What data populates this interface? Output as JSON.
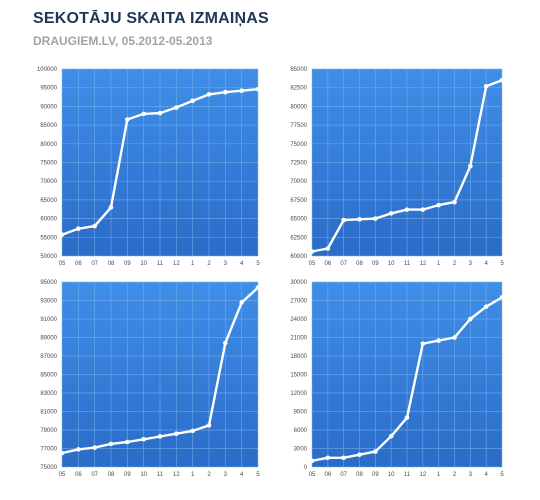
{
  "header": {
    "title": "SEKOTĀJU SKAITA IZMAIŅAS",
    "subtitle": "DRAUGIEM.LV, 05.2012-05.2013"
  },
  "colors": {
    "plot_top": "#3f8ee8",
    "plot_bottom": "#2a6cc8",
    "grid": "#7fb2ee",
    "line": "#ffffff",
    "title": "#1f3557",
    "subtitle": "#a3a3a3"
  },
  "chart_data": [
    {
      "type": "line",
      "title": "",
      "x": [
        "05",
        "06",
        "07",
        "08",
        "09",
        "10",
        "11",
        "12",
        "1",
        "2",
        "3",
        "4",
        "5"
      ],
      "series": [
        {
          "values": [
            55700,
            57300,
            58000,
            63000,
            86500,
            88000,
            88200,
            89700,
            91500,
            93200,
            93800,
            94200,
            94600
          ]
        }
      ],
      "ylim": [
        50000,
        100000
      ],
      "yticks": [
        "50000",
        "55000",
        "60000",
        "65000",
        "70000",
        "75000",
        "80000",
        "85000",
        "90000",
        "95000",
        "100000"
      ],
      "grid": true
    },
    {
      "type": "line",
      "title": "",
      "x": [
        "05",
        "06",
        "07",
        "08",
        "09",
        "10",
        "11",
        "12",
        "1",
        "2",
        "3",
        "4",
        "5"
      ],
      "series": [
        {
          "values": [
            60600,
            61000,
            64800,
            64900,
            65000,
            65700,
            66200,
            66200,
            66800,
            67200,
            72000,
            82700,
            83500
          ]
        }
      ],
      "ylim": [
        60000,
        85000
      ],
      "yticks": [
        "60000",
        "62500",
        "65000",
        "67500",
        "70000",
        "72500",
        "75000",
        "77500",
        "80000",
        "82500",
        "85000"
      ],
      "grid": true
    },
    {
      "type": "line",
      "title": "",
      "x": [
        "05",
        "06",
        "07",
        "08",
        "09",
        "10",
        "11",
        "12",
        "1",
        "2",
        "3",
        "4",
        "5"
      ],
      "series": [
        {
          "values": [
            76500,
            76900,
            77100,
            77500,
            77700,
            78000,
            78300,
            78600,
            78900,
            79500,
            88400,
            92800,
            94400
          ]
        }
      ],
      "ylim": [
        75000,
        95000
      ],
      "yticks": [
        "75000",
        "77000",
        "79000",
        "81000",
        "83000",
        "85000",
        "87000",
        "89000",
        "91000",
        "93000",
        "95000"
      ],
      "grid": true
    },
    {
      "type": "line",
      "title": "",
      "x": [
        "05",
        "06",
        "07",
        "08",
        "09",
        "10",
        "11",
        "12",
        "1",
        "2",
        "3",
        "4",
        "5"
      ],
      "series": [
        {
          "values": [
            1000,
            1500,
            1500,
            2000,
            2500,
            5000,
            8000,
            20000,
            20500,
            21000,
            24000,
            26000,
            27500
          ]
        }
      ],
      "ylim": [
        0,
        30000
      ],
      "yticks": [
        "0",
        "3000",
        "6000",
        "9000",
        "12000",
        "15000",
        "18000",
        "21000",
        "24000",
        "27000",
        "30000"
      ],
      "grid": true
    }
  ]
}
